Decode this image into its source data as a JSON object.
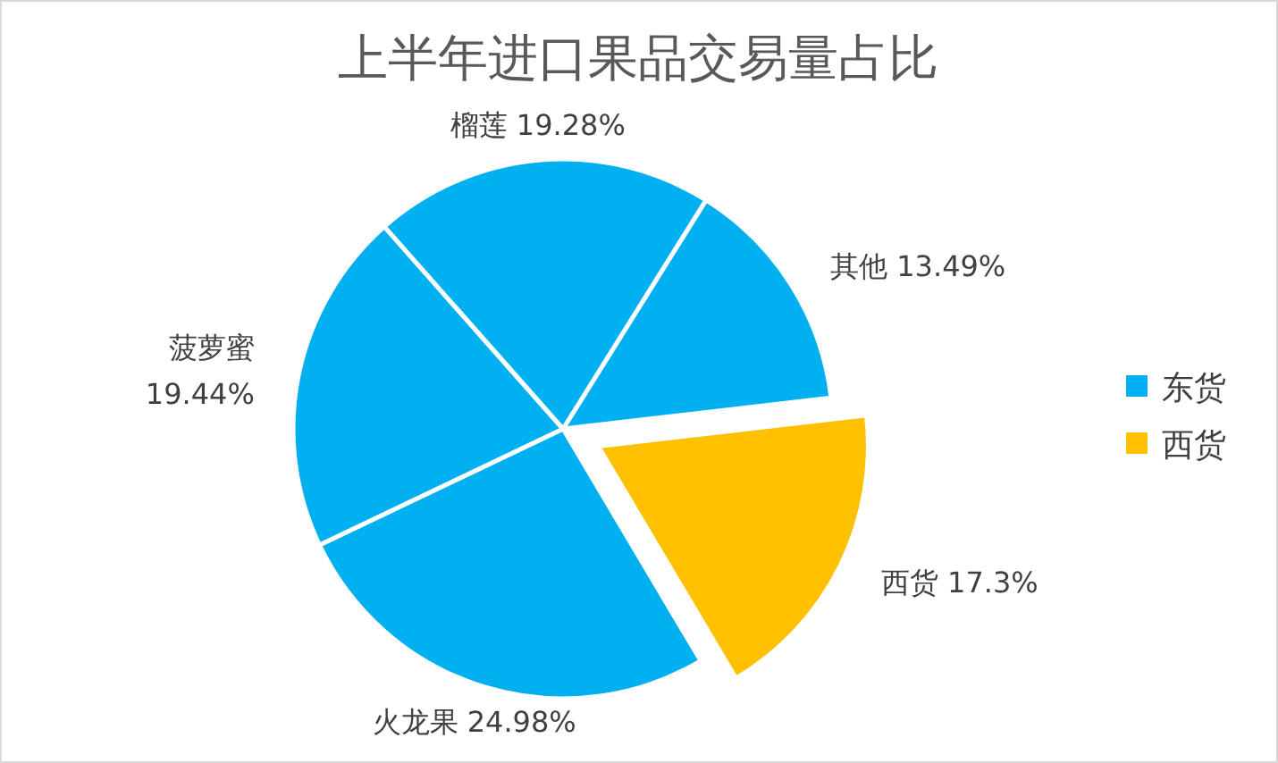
{
  "chart_data": {
    "type": "pie",
    "title": "上半年进口果品交易量占比",
    "categories": [
      "其他",
      "西货",
      "火龙果",
      "菠萝蜜",
      "榴莲"
    ],
    "values": [
      13.49,
      17.3,
      24.98,
      19.44,
      19.28
    ],
    "value_labels": [
      "13.49%",
      "17.3%",
      "24.98%",
      "19.44%",
      "19.28%"
    ],
    "colors": [
      "#00b0f0",
      "#ffc000",
      "#00b0f0",
      "#00b0f0",
      "#00b0f0"
    ],
    "annotations": [
      "东货",
      "西货"
    ],
    "legend": "right"
  }
}
